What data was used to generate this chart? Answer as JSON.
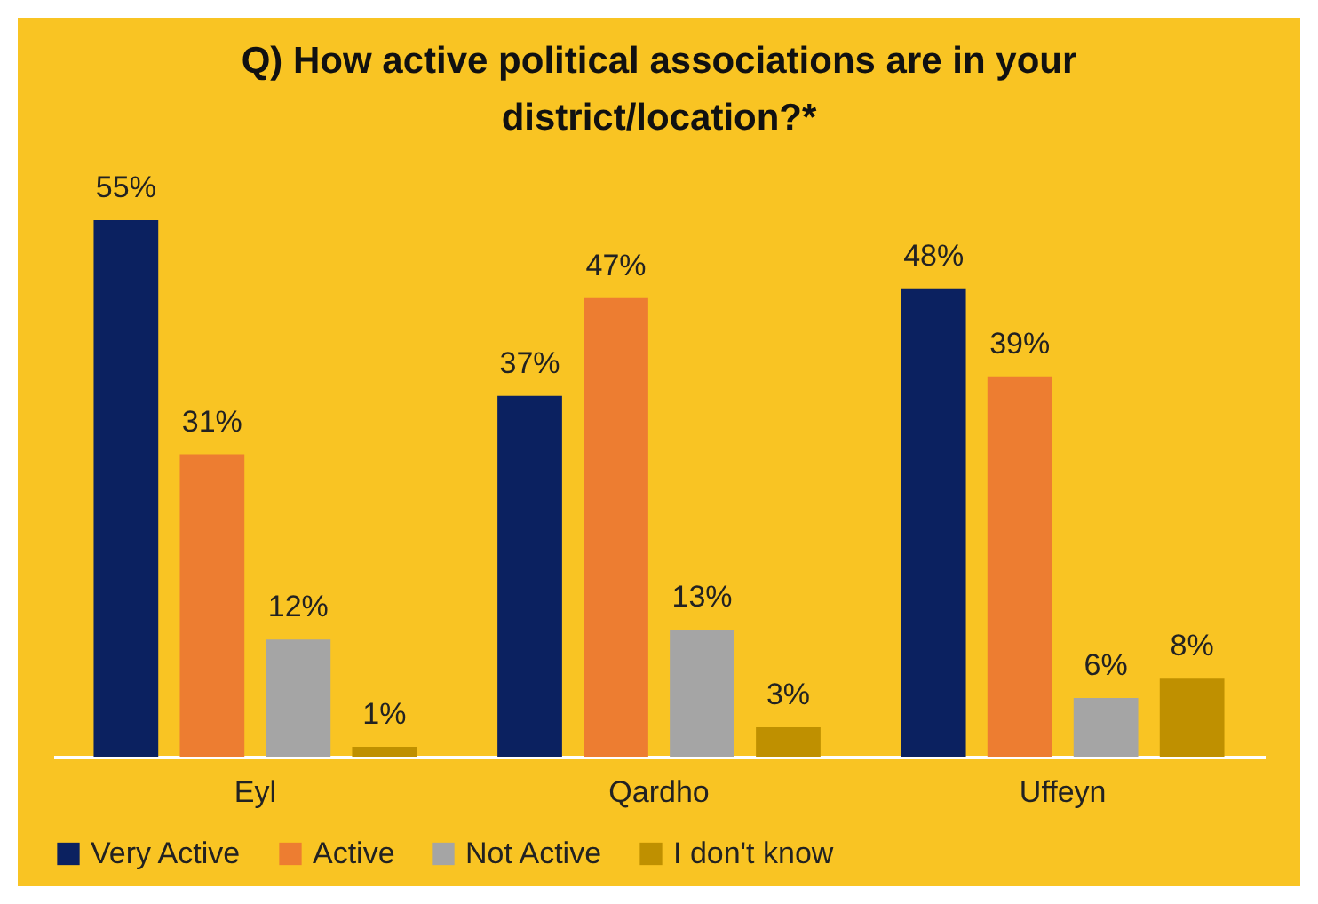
{
  "chart_data": {
    "type": "bar",
    "title": "Q) How active political associations are in your district/location?*",
    "categories": [
      "Eyl",
      "Qardho",
      "Uffeyn"
    ],
    "series": [
      {
        "name": "Very Active",
        "color": "#0b2160",
        "values": [
          55,
          37,
          48
        ],
        "value_labels": [
          "55%",
          "37%",
          "48%"
        ]
      },
      {
        "name": "Active",
        "color": "#ed7d31",
        "values": [
          31,
          47,
          39
        ],
        "value_labels": [
          "31%",
          "47%",
          "39%"
        ]
      },
      {
        "name": "Not Active",
        "color": "#a5a5a5",
        "values": [
          12,
          13,
          6
        ],
        "value_labels": [
          "12%",
          "13%",
          "6%"
        ]
      },
      {
        "name": "I don't know",
        "color": "#bf9000",
        "values": [
          1,
          3,
          8
        ],
        "value_labels": [
          "1%",
          "3%",
          "8%"
        ]
      }
    ],
    "legend": "bottom",
    "grid": false
  }
}
